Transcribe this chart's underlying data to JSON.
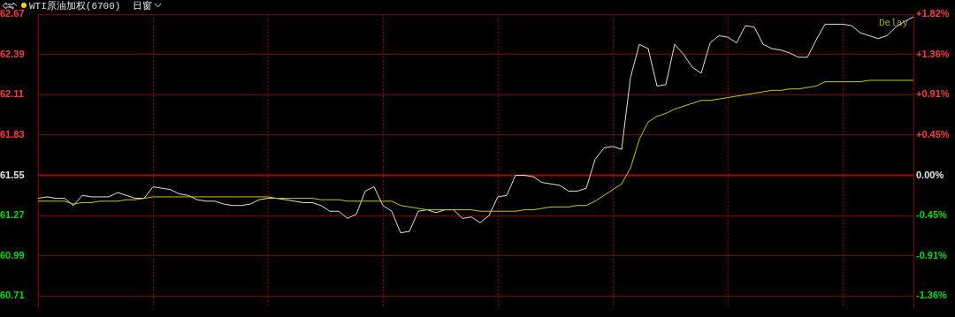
{
  "chart_data": {
    "type": "line",
    "title": "WTI原油加权(6700)",
    "subtitle": "日窗",
    "categories": [
      null,
      null,
      null,
      null,
      null,
      null,
      null,
      null,
      null,
      null,
      null,
      null,
      null,
      null,
      null,
      null,
      null,
      null,
      null,
      null,
      null,
      null,
      null,
      null,
      null,
      null,
      null,
      null,
      null,
      null,
      null,
      null,
      null,
      null,
      null,
      null,
      null,
      null,
      null,
      null,
      null,
      null,
      null,
      null,
      null,
      null,
      null,
      null,
      null,
      null,
      null,
      null,
      null,
      null,
      null,
      null,
      null,
      null,
      null,
      null,
      null,
      null,
      null,
      null,
      null,
      null,
      null,
      null,
      null,
      null,
      null,
      null,
      null,
      null,
      null,
      null,
      null,
      null,
      null,
      null,
      null,
      null,
      null,
      null,
      null,
      null,
      null,
      null,
      null,
      null,
      null,
      null,
      null,
      null,
      null,
      null,
      null,
      null,
      null,
      null
    ],
    "series": [
      {
        "color": "#e0e0e0",
        "values": [
          61.39,
          61.4,
          61.39,
          61.39,
          61.34,
          61.41,
          61.4,
          61.4,
          61.4,
          61.43,
          61.41,
          61.39,
          61.39,
          61.47,
          61.46,
          61.45,
          61.42,
          61.41,
          61.38,
          61.37,
          61.37,
          61.35,
          61.34,
          61.34,
          61.35,
          61.38,
          61.39,
          61.39,
          61.38,
          61.37,
          61.36,
          61.36,
          61.34,
          61.3,
          61.3,
          61.25,
          61.28,
          61.44,
          61.47,
          61.34,
          61.3,
          61.15,
          61.16,
          61.3,
          61.31,
          61.29,
          61.31,
          61.31,
          61.25,
          61.26,
          61.22,
          61.27,
          61.4,
          61.41,
          61.55,
          61.55,
          61.54,
          61.5,
          61.49,
          61.48,
          61.44,
          61.44,
          61.46,
          61.66,
          61.74,
          61.75,
          61.73,
          62.23,
          62.46,
          62.43,
          62.17,
          62.18,
          62.46,
          62.39,
          62.3,
          62.26,
          62.47,
          62.52,
          62.51,
          62.47,
          62.59,
          62.58,
          62.46,
          62.43,
          62.42,
          62.4,
          62.37,
          62.37,
          62.49,
          62.6,
          62.6,
          62.6,
          62.59,
          62.54,
          62.52,
          62.5,
          62.52,
          62.58,
          62.62,
          62.65
        ]
      },
      {
        "color": "#c8c800",
        "values": [
          61.37,
          61.37,
          61.37,
          61.37,
          61.35,
          61.36,
          61.36,
          61.37,
          61.37,
          61.37,
          61.38,
          61.38,
          61.39,
          61.4,
          61.4,
          61.4,
          61.4,
          61.4,
          61.4,
          61.4,
          61.4,
          61.4,
          61.4,
          61.4,
          61.4,
          61.4,
          61.4,
          61.39,
          61.39,
          61.39,
          61.39,
          61.39,
          61.38,
          61.38,
          61.38,
          61.37,
          61.37,
          61.37,
          61.37,
          61.37,
          61.37,
          61.34,
          61.33,
          61.32,
          61.31,
          61.31,
          61.31,
          61.31,
          61.31,
          61.31,
          61.3,
          61.3,
          61.3,
          61.3,
          61.3,
          61.31,
          61.31,
          61.32,
          61.33,
          61.33,
          61.33,
          61.34,
          61.34,
          61.37,
          61.41,
          61.45,
          61.49,
          61.6,
          61.8,
          61.92,
          61.96,
          61.98,
          62.01,
          62.03,
          62.05,
          62.07,
          62.07,
          62.08,
          62.09,
          62.1,
          62.11,
          62.12,
          62.13,
          62.14,
          62.14,
          62.15,
          62.15,
          62.16,
          62.17,
          62.2,
          62.2,
          62.2,
          62.2,
          62.2,
          62.21,
          62.21,
          62.21,
          62.21,
          62.21,
          62.21
        ]
      }
    ],
    "ylim": [
      60.63,
      62.67
    ],
    "yticks": [
      60.71,
      60.99,
      61.27,
      61.55,
      61.83,
      62.11,
      62.39,
      62.67
    ],
    "y2lim": [
      -1.495,
      1.82
    ],
    "y2ticks": [
      {
        "value": -1.365,
        "label": "-1.36%"
      },
      {
        "value": -0.91,
        "label": "-0.91%"
      },
      {
        "value": -0.455,
        "label": "-0.45%"
      },
      {
        "value": 0,
        "label": "0.00%"
      },
      {
        "value": 0.455,
        "label": "+0.45%"
      },
      {
        "value": 0.91,
        "label": "+0.91%"
      },
      {
        "value": 1.365,
        "label": "+1.36%"
      },
      {
        "value": 1.82,
        "label": "+1.82%"
      }
    ],
    "ref_lines": [
      {
        "axis": "y",
        "value": 61.55,
        "color": "#b00000"
      }
    ],
    "annotations": [
      "Delay"
    ],
    "grid": true,
    "legend": false,
    "marker": "none",
    "line_style": "solid"
  }
}
